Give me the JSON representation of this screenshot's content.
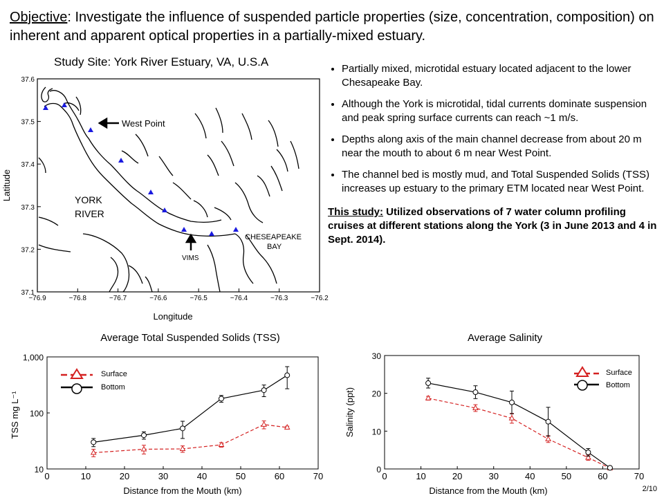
{
  "objective": {
    "label": "Objective",
    "text": ": Investigate the influence of suspended particle properties (size, concentration, composition) on inherent and apparent optical properties in a  partially-mixed estuary."
  },
  "map": {
    "title": "Study Site: York River Estuary, VA, U.S.A",
    "xlabel": "Longitude",
    "ylabel": "Latitude",
    "xticks": [
      "−76.9",
      "−76.8",
      "−76.7",
      "−76.6",
      "−76.5",
      "−76.4",
      "−76.3",
      "−76.2"
    ],
    "yticks": [
      "37.6",
      "37.5",
      "37.4",
      "37.3",
      "37.2",
      "37.1"
    ],
    "labels": {
      "west_point": "West Point",
      "york": "YORK",
      "river": "RIVER",
      "vims": "VIMS",
      "chesapeake": "CHESEAPEAKE",
      "bay": "BAY"
    },
    "station_color": "#1a1adf"
  },
  "bullets": [
    "Partially mixed, microtidal estuary located adjacent to the lower Chesapeake Bay.",
    "Although the York is microtidal, tidal currents dominate suspension and peak spring surface currents can reach ~1 m/s.",
    "Depths along axis of the main channel decrease from about 20 m near the mouth to about 6 m near West Point.",
    "The channel bed is mostly mud, and Total Suspended Solids (TSS) increases up estuary to the primary ETM located near West Point."
  ],
  "study": {
    "label": "This study:",
    "text": " Utilized observations of 7 water column profiling cruises at different stations along the York (3 in June 2013 and 4 in Sept. 2014)."
  },
  "page_number": "2/10",
  "chart_data": [
    {
      "type": "line",
      "title": "Average Total Suspended Solids (TSS)",
      "xlabel": "Distance from the Mouth (km)",
      "ylabel": "TSS mg L⁻¹",
      "y_scale": "log",
      "xlim": [
        0,
        70
      ],
      "ylim": [
        10,
        1000
      ],
      "xticks": [
        "0",
        "10",
        "20",
        "30",
        "40",
        "50",
        "60",
        "70"
      ],
      "yticks": [
        "1,000",
        "100",
        "10"
      ],
      "x": [
        12,
        25,
        35,
        45,
        56,
        62
      ],
      "series": [
        {
          "name": "Surface",
          "color": "#d42020",
          "dash": true,
          "marker": "triangle",
          "values": [
            19.5,
            22.5,
            22.8,
            27,
            62,
            55
          ],
          "err": [
            3,
            4,
            3,
            2.5,
            10,
            3
          ]
        },
        {
          "name": "Bottom",
          "color": "#000000",
          "dash": false,
          "marker": "circle",
          "values": [
            30,
            40,
            53,
            180,
            255,
            470
          ],
          "err": [
            5,
            6,
            18,
            25,
            60,
            200
          ]
        }
      ],
      "legend": "top-left"
    },
    {
      "type": "line",
      "title": "Average Salinity",
      "xlabel": "Distance from the Mouth (km)",
      "ylabel": "Salinity (ppt)",
      "xlim": [
        0,
        70
      ],
      "ylim": [
        0,
        30
      ],
      "xticks": [
        "0",
        "10",
        "20",
        "30",
        "40",
        "50",
        "60",
        "70"
      ],
      "yticks": [
        "30",
        "20",
        "10",
        "0"
      ],
      "x": [
        12,
        25,
        35,
        45,
        56,
        62
      ],
      "series": [
        {
          "name": "Surface",
          "color": "#d42020",
          "dash": true,
          "marker": "triangle",
          "values": [
            18.7,
            16.1,
            13.4,
            7.9,
            3.0,
            0.2
          ],
          "err": [
            0.5,
            0.9,
            1.3,
            0.9,
            0.7,
            0.2
          ]
        },
        {
          "name": "Bottom",
          "color": "#000000",
          "dash": false,
          "marker": "circle",
          "values": [
            22.7,
            20.3,
            17.6,
            12.5,
            4.4,
            0.3
          ],
          "err": [
            1.3,
            1.7,
            3.0,
            3.8,
            1.0,
            0.3
          ]
        }
      ],
      "legend": "top-right"
    }
  ]
}
